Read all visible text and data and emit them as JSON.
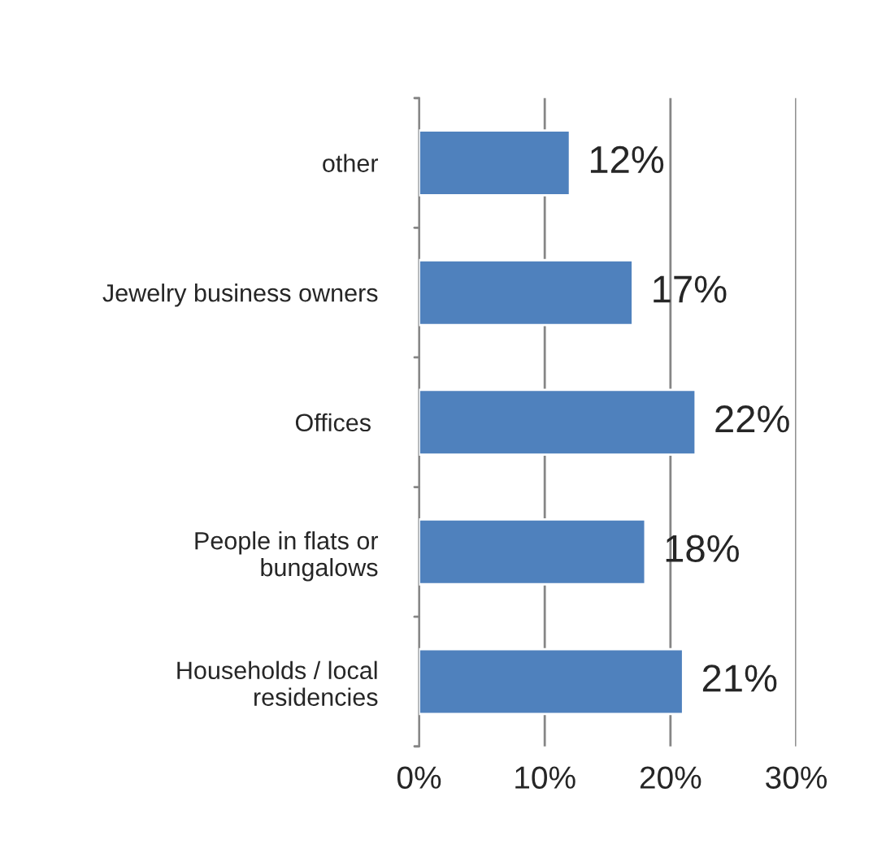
{
  "chart_data": {
    "type": "bar",
    "orientation": "horizontal",
    "categories": [
      "other",
      "Jewelry business owners",
      "Offices ",
      "People in flats or\nbungalows",
      "Households / local\nresidencies"
    ],
    "values": [
      12,
      17,
      22,
      18,
      21
    ],
    "value_labels": [
      "12%",
      "17%",
      "22%",
      "18%",
      "21%"
    ],
    "color": "#4f81bd",
    "xlim": [
      0,
      30
    ],
    "xticks": [
      {
        "value": 0,
        "label": "0%"
      },
      {
        "value": 10,
        "label": "10%"
      },
      {
        "value": 20,
        "label": "20%"
      },
      {
        "value": 30,
        "label": "30%"
      }
    ],
    "grid": "x",
    "legend": false
  }
}
